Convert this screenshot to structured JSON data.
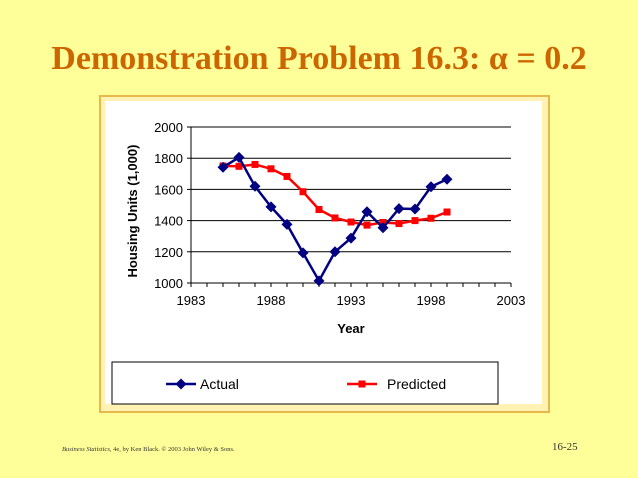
{
  "slide": {
    "title_prefix": "Demonstration Problem 16.3: ",
    "title_symbol": "α",
    "title_suffix": " = 0.2",
    "footer_book": "Business Statistics",
    "footer_rest": ", 4e, by Ken Black. © 2003 John Wiley & Sons.",
    "page_number": "16-25"
  },
  "chart_data": {
    "type": "line",
    "title": "",
    "xlabel": "Year",
    "ylabel": "Housing Units (1,000)",
    "xlim": [
      1983,
      2003
    ],
    "ylim": [
      1000,
      2000
    ],
    "x_ticks": [
      1983,
      1988,
      1993,
      1998,
      2003
    ],
    "y_ticks": [
      1000,
      1200,
      1400,
      1600,
      1800,
      2000
    ],
    "grid": "horizontal",
    "legend_position": "bottom",
    "series": [
      {
        "name": "Actual",
        "color": "#000080",
        "marker": "diamond",
        "x": [
          1985,
          1986,
          1987,
          1988,
          1989,
          1990,
          1991,
          1992,
          1993,
          1994,
          1995,
          1996,
          1997,
          1998,
          1999
        ],
        "values": [
          1742,
          1805,
          1620,
          1488,
          1376,
          1193,
          1014,
          1200,
          1288,
          1457,
          1354,
          1477,
          1474,
          1617,
          1665
        ]
      },
      {
        "name": "Predicted",
        "color": "#FF0000",
        "marker": "square",
        "x": [
          1985,
          1986,
          1987,
          1988,
          1989,
          1990,
          1991,
          1992,
          1993,
          1994,
          1995,
          1996,
          1997,
          1998,
          1999
        ],
        "values": [
          1750,
          1748,
          1760,
          1732,
          1683,
          1585,
          1471,
          1417,
          1391,
          1371,
          1388,
          1381,
          1400,
          1415,
          1455
        ]
      }
    ]
  }
}
